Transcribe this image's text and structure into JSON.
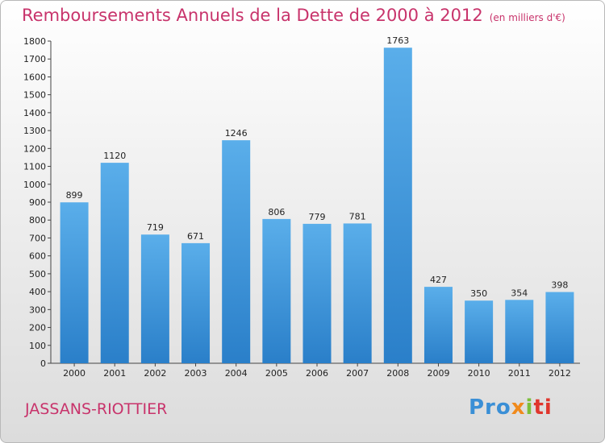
{
  "title": "Remboursements Annuels de la Dette de 2000 à 2012",
  "subtitle": "(en milliers d'€)",
  "town": "JASSANS-RIOTTIER",
  "logo": {
    "part1": "Pro",
    "part2": "x",
    "part3": "i",
    "part4": "ti"
  },
  "colors": {
    "bar_top": "#5aaeea",
    "bar_bottom": "#2a7fc9",
    "title": "#c8336b"
  },
  "chart_data": {
    "type": "bar",
    "categories": [
      "2000",
      "2001",
      "2002",
      "2003",
      "2004",
      "2005",
      "2006",
      "2007",
      "2008",
      "2009",
      "2010",
      "2011",
      "2012"
    ],
    "values": [
      899,
      1120,
      719,
      671,
      1246,
      806,
      779,
      781,
      1763,
      427,
      350,
      354,
      398
    ],
    "title": "Remboursements Annuels de la Dette de 2000 à 2012",
    "ylim": [
      0,
      1800
    ],
    "yticks": [
      0,
      100,
      200,
      300,
      400,
      500,
      600,
      700,
      800,
      900,
      1000,
      1100,
      1200,
      1300,
      1400,
      1500,
      1600,
      1700,
      1800
    ],
    "grid": false
  }
}
